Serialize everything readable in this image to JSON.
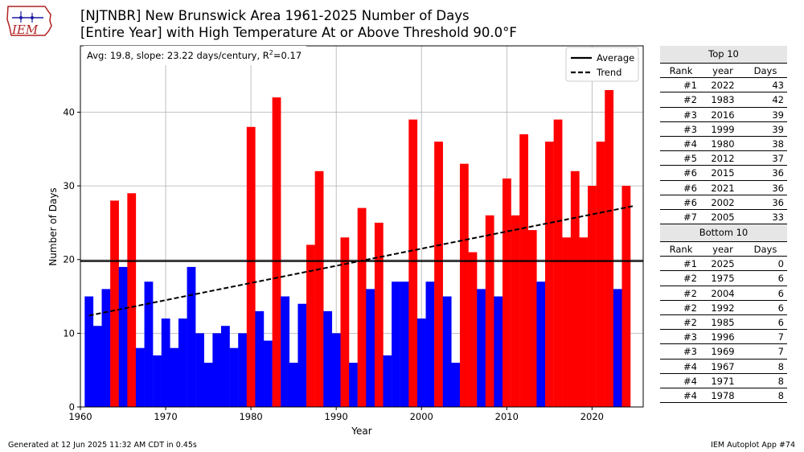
{
  "title": {
    "line1": "[NJTNBR] New Brunswick Area 1961-2025 Number of Days",
    "line2": "[Entire Year] with High Temperature At or Above Threshold 90.0°F"
  },
  "logo_text": "IEM",
  "footer": {
    "left": "Generated at 12 Jun 2025 11:32 AM CDT in 0.45s",
    "right": "IEM Autoplot App #74"
  },
  "colors": {
    "above": "#ff0000",
    "below": "#0000ff"
  },
  "chart_data": {
    "type": "bar",
    "xlabel": "Year",
    "ylabel": "Number of Days",
    "xlim": [
      1960,
      2026
    ],
    "ylim": [
      0,
      49
    ],
    "xticks": [
      1960,
      1970,
      1980,
      1990,
      2000,
      2010,
      2020
    ],
    "yticks": [
      0,
      10,
      20,
      30,
      40
    ],
    "grid": true,
    "average": 19.8,
    "trend": {
      "slope_per_century": 23.22,
      "y_at_1961": 12.4,
      "y_at_2025": 27.3
    },
    "annotation": {
      "prefix": "Avg: 19.8, slope: 23.22 days/century, R",
      "sup": "2",
      "suffix": "=0.17"
    },
    "legend": {
      "position": "top-right",
      "entries": [
        "Average",
        "Trend"
      ]
    },
    "years": [
      1961,
      1962,
      1963,
      1964,
      1965,
      1966,
      1967,
      1968,
      1969,
      1970,
      1971,
      1972,
      1973,
      1974,
      1975,
      1976,
      1977,
      1978,
      1979,
      1980,
      1981,
      1982,
      1983,
      1984,
      1985,
      1986,
      1987,
      1988,
      1989,
      1990,
      1991,
      1992,
      1993,
      1994,
      1995,
      1996,
      1997,
      1998,
      1999,
      2000,
      2001,
      2002,
      2003,
      2004,
      2005,
      2006,
      2007,
      2008,
      2009,
      2010,
      2011,
      2012,
      2013,
      2014,
      2015,
      2016,
      2017,
      2018,
      2019,
      2020,
      2021,
      2022,
      2023,
      2024,
      2025
    ],
    "values": [
      15,
      11,
      16,
      28,
      19,
      29,
      8,
      17,
      7,
      12,
      8,
      12,
      19,
      10,
      6,
      10,
      11,
      8,
      10,
      38,
      13,
      9,
      42,
      15,
      6,
      14,
      22,
      32,
      13,
      10,
      23,
      6,
      27,
      16,
      25,
      7,
      17,
      17,
      39,
      12,
      17,
      36,
      15,
      6,
      33,
      21,
      16,
      26,
      15,
      31,
      26,
      37,
      24,
      17,
      36,
      39,
      23,
      32,
      23,
      30,
      36,
      43,
      16,
      30,
      0
    ]
  },
  "top10": {
    "heading": "Top 10",
    "columns": [
      "Rank",
      "year",
      "Days"
    ],
    "rows": [
      [
        "#1",
        "2022",
        "43"
      ],
      [
        "#2",
        "1983",
        "42"
      ],
      [
        "#3",
        "2016",
        "39"
      ],
      [
        "#3",
        "1999",
        "39"
      ],
      [
        "#4",
        "1980",
        "38"
      ],
      [
        "#5",
        "2012",
        "37"
      ],
      [
        "#6",
        "2015",
        "36"
      ],
      [
        "#6",
        "2021",
        "36"
      ],
      [
        "#6",
        "2002",
        "36"
      ],
      [
        "#7",
        "2005",
        "33"
      ]
    ]
  },
  "bottom10": {
    "heading": "Bottom 10",
    "columns": [
      "Rank",
      "year",
      "Days"
    ],
    "rows": [
      [
        "#1",
        "2025",
        "0"
      ],
      [
        "#2",
        "1975",
        "6"
      ],
      [
        "#2",
        "2004",
        "6"
      ],
      [
        "#2",
        "1992",
        "6"
      ],
      [
        "#2",
        "1985",
        "6"
      ],
      [
        "#3",
        "1996",
        "7"
      ],
      [
        "#3",
        "1969",
        "7"
      ],
      [
        "#4",
        "1967",
        "8"
      ],
      [
        "#4",
        "1971",
        "8"
      ],
      [
        "#4",
        "1978",
        "8"
      ]
    ]
  }
}
